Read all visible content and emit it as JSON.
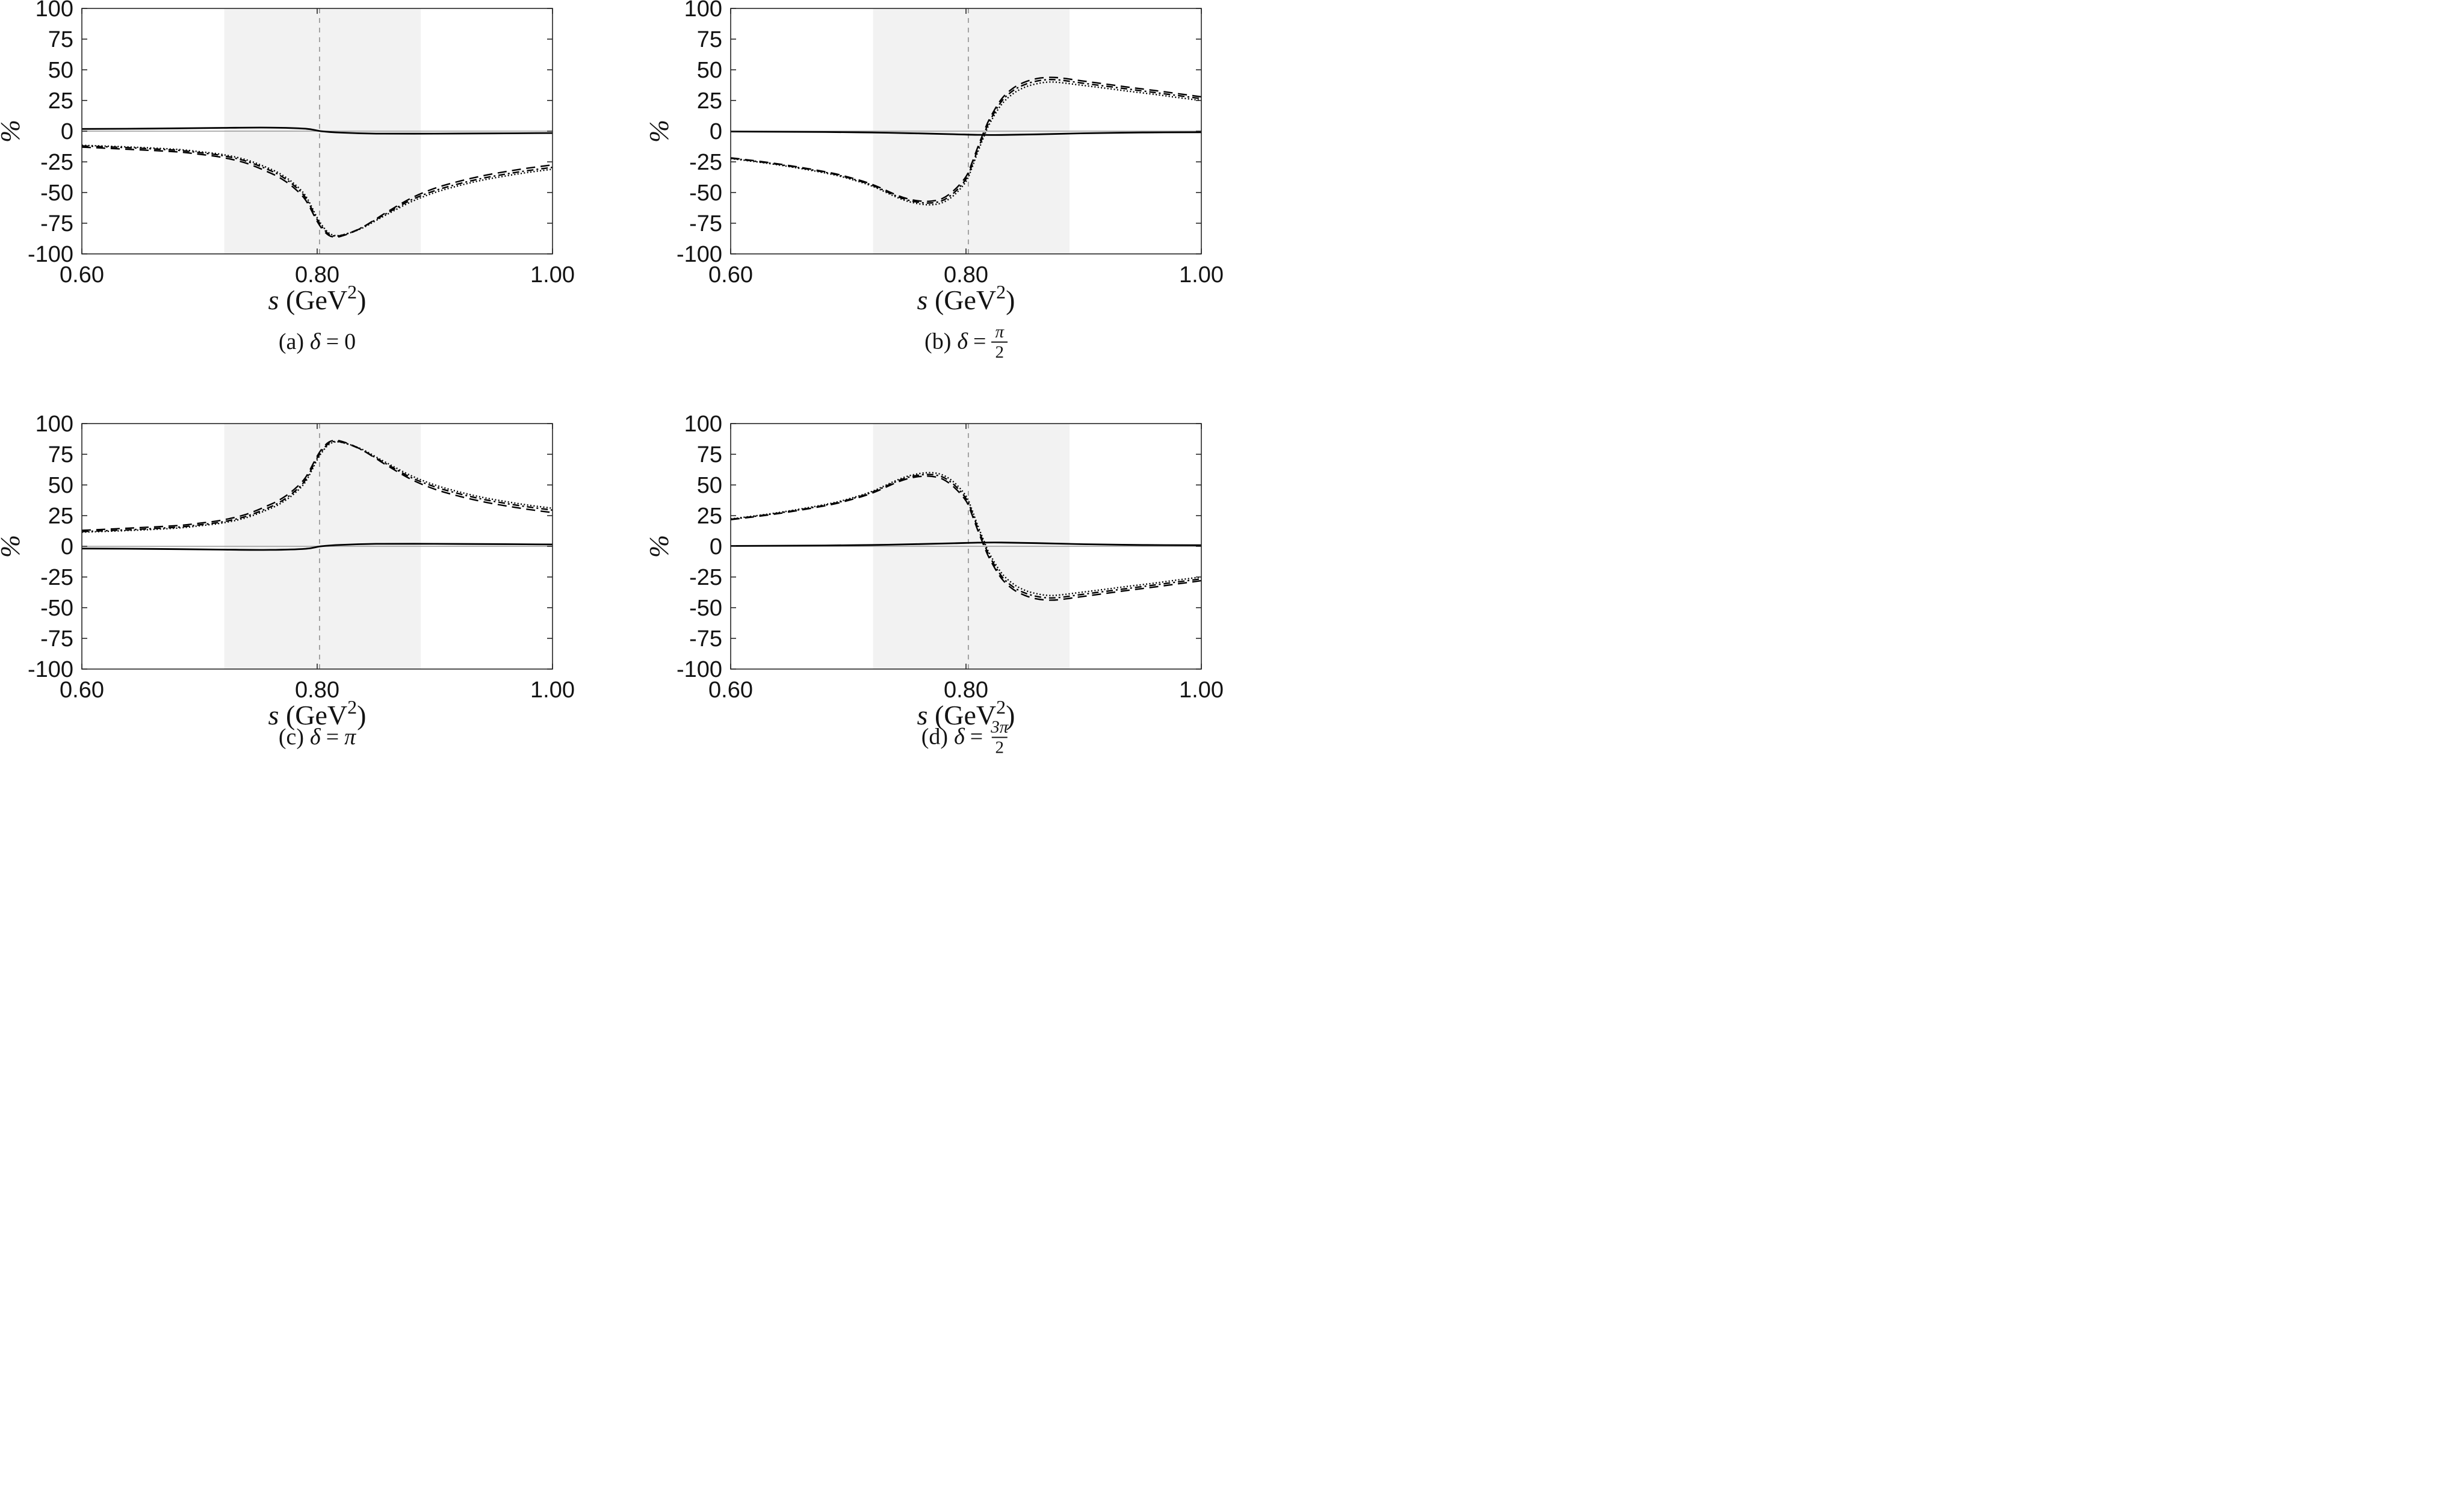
{
  "style": {
    "band_color": "#f2f2f2",
    "vline_color": "#8a8a8a",
    "zero_line_color": "#9a9a9a",
    "axis_color": "#262626",
    "curve_color": "#000000",
    "text_color": "#131313"
  },
  "figure": {
    "ylabel": "%",
    "xlabel": {
      "var": "s",
      "open": "(GeV",
      "exp": "2",
      "close": ")"
    }
  },
  "chart_data": [
    {
      "id": "a",
      "type": "line",
      "caption": {
        "prefix": "(a)",
        "symbol": "δ",
        "eq": "=",
        "value": "0",
        "value_italic": false
      },
      "xlim": [
        0.6,
        1.0
      ],
      "ylim": [
        -100,
        100
      ],
      "xticks": {
        "values": [
          0.6,
          0.8,
          1.0
        ],
        "labels": [
          "0.60",
          "0.80",
          "1.00"
        ]
      },
      "yticks": {
        "values": [
          100,
          75,
          50,
          25,
          0,
          -25,
          -50,
          -75,
          -100
        ],
        "labels": [
          "100",
          "75",
          "50",
          "25",
          "0",
          "-25",
          "-50",
          "-75",
          "-100"
        ]
      },
      "band": [
        0.721,
        0.888
      ],
      "vline": 0.802,
      "x": [
        0.6,
        0.64,
        0.68,
        0.7,
        0.72,
        0.74,
        0.76,
        0.77,
        0.78,
        0.79,
        0.8,
        0.805,
        0.81,
        0.815,
        0.82,
        0.83,
        0.84,
        0.85,
        0.86,
        0.88,
        0.9,
        0.92,
        0.94,
        0.96,
        0.98,
        1.0
      ],
      "series": [
        {
          "name": "dashed",
          "style": "dashed",
          "y": [
            -13,
            -14.8,
            -16.8,
            -18.8,
            -21.5,
            -26.2,
            -34,
            -39,
            -46,
            -56,
            -73.5,
            -80.5,
            -85,
            -86.3,
            -85.7,
            -82.3,
            -77.5,
            -71.5,
            -65.5,
            -54.5,
            -46.5,
            -41,
            -36.5,
            -33,
            -30,
            -27.5
          ]
        },
        {
          "name": "dash-dot",
          "style": "dashdot",
          "y": [
            -12,
            -13.5,
            -15.5,
            -17.5,
            -20,
            -24.5,
            -32,
            -37,
            -44,
            -54,
            -72,
            -79,
            -84,
            -85.5,
            -85,
            -82,
            -77.5,
            -72,
            -66.5,
            -56,
            -48.5,
            -43,
            -38.5,
            -35,
            -32,
            -29.5
          ]
        },
        {
          "name": "dotted",
          "style": "dotted",
          "y": [
            -11.5,
            -12.9,
            -14.8,
            -16.7,
            -19.1,
            -23.4,
            -30.7,
            -35.6,
            -42.5,
            -52.5,
            -70.5,
            -77.8,
            -83,
            -85,
            -84.8,
            -82.2,
            -78.2,
            -72.8,
            -67.5,
            -57.5,
            -50,
            -44.5,
            -40,
            -36.5,
            -33.5,
            -31
          ]
        }
      ],
      "solid": {
        "x": [
          0.6,
          0.66,
          0.72,
          0.76,
          0.79,
          0.803,
          0.82,
          0.85,
          0.9,
          0.95,
          1.0
        ],
        "y": [
          1.8,
          2.1,
          2.7,
          2.9,
          2.0,
          0,
          -1.2,
          -2.0,
          -2.0,
          -1.8,
          -1.5
        ]
      }
    },
    {
      "id": "b",
      "type": "line",
      "caption": {
        "prefix": "(b)",
        "symbol": "δ",
        "eq": "=",
        "frac": {
          "num": "π",
          "den": "2"
        }
      },
      "xlim": [
        0.6,
        1.0
      ],
      "ylim": [
        -100,
        100
      ],
      "xticks": {
        "values": [
          0.6,
          0.8,
          1.0
        ],
        "labels": [
          "0.60",
          "0.80",
          "1.00"
        ]
      },
      "yticks": {
        "values": [
          100,
          75,
          50,
          25,
          0,
          -25,
          -50,
          -75,
          -100
        ],
        "labels": [
          "100",
          "75",
          "50",
          "25",
          "0",
          "-25",
          "-50",
          "-75",
          "-100"
        ]
      },
      "band": [
        0.721,
        0.888
      ],
      "vline": 0.802,
      "x": [
        0.6,
        0.64,
        0.68,
        0.7,
        0.72,
        0.74,
        0.75,
        0.76,
        0.77,
        0.78,
        0.79,
        0.8,
        0.805,
        0.81,
        0.815,
        0.82,
        0.83,
        0.84,
        0.85,
        0.86,
        0.87,
        0.88,
        0.9,
        0.92,
        0.94,
        0.96,
        0.98,
        1.0
      ],
      "series": [
        {
          "name": "dashed",
          "style": "dashed",
          "y": [
            -21.7,
            -26.6,
            -33,
            -37.4,
            -43.3,
            -51.6,
            -55,
            -56.8,
            -57,
            -54.8,
            -48,
            -37,
            -26,
            -13,
            -1,
            10,
            26,
            35,
            40,
            42.8,
            43.8,
            43.4,
            40.8,
            38.2,
            35.6,
            33.2,
            30.6,
            28
          ]
        },
        {
          "name": "dash-dot",
          "style": "dashdot",
          "y": [
            -22,
            -27,
            -33.5,
            -38,
            -44,
            -52.5,
            -56,
            -58,
            -58.5,
            -56.5,
            -50,
            -39,
            -28,
            -15,
            -3,
            8,
            24,
            33,
            38,
            40.8,
            42,
            41.6,
            39,
            36.5,
            34,
            31.5,
            29,
            26.5
          ]
        },
        {
          "name": "dotted",
          "style": "dotted",
          "y": [
            -22.3,
            -27.4,
            -34,
            -38.6,
            -44.7,
            -53.4,
            -57,
            -59.2,
            -60,
            -58.2,
            -52,
            -41,
            -30,
            -17,
            -5,
            6,
            21.5,
            30.5,
            35.8,
            38.6,
            40,
            39.6,
            37.2,
            34.8,
            32.3,
            30,
            27.4,
            25
          ]
        }
      ],
      "solid": {
        "x": [
          0.6,
          0.68,
          0.72,
          0.76,
          0.79,
          0.81,
          0.83,
          0.86,
          0.9,
          0.95,
          1.0
        ],
        "y": [
          -0.3,
          -0.7,
          -1.1,
          -1.8,
          -2.5,
          -3.0,
          -3.1,
          -2.6,
          -1.7,
          -1.1,
          -0.9
        ]
      }
    },
    {
      "id": "c",
      "type": "line",
      "caption": {
        "prefix": "(c)",
        "symbol": "δ",
        "eq": "=",
        "value": "π",
        "value_italic": true
      },
      "xlim": [
        0.6,
        1.0
      ],
      "ylim": [
        -100,
        100
      ],
      "xticks": {
        "values": [
          0.6,
          0.8,
          1.0
        ],
        "labels": [
          "0.60",
          "0.80",
          "1.00"
        ]
      },
      "yticks": {
        "values": [
          100,
          75,
          50,
          25,
          0,
          -25,
          -50,
          -75,
          -100
        ],
        "labels": [
          "100",
          "75",
          "50",
          "25",
          "0",
          "-25",
          "-50",
          "-75",
          "-100"
        ]
      },
      "band": [
        0.721,
        0.888
      ],
      "vline": 0.802,
      "x": [
        0.6,
        0.64,
        0.68,
        0.7,
        0.72,
        0.74,
        0.76,
        0.77,
        0.78,
        0.79,
        0.8,
        0.805,
        0.81,
        0.815,
        0.82,
        0.83,
        0.84,
        0.85,
        0.86,
        0.88,
        0.9,
        0.92,
        0.94,
        0.96,
        0.98,
        1.0
      ],
      "series": [
        {
          "name": "dashed",
          "style": "dashed",
          "y": [
            13,
            14.8,
            16.8,
            18.8,
            21.5,
            26.2,
            34,
            39,
            46,
            56,
            73.5,
            80.5,
            85,
            86.3,
            85.7,
            82.3,
            77.5,
            71.5,
            65.5,
            54.5,
            46.5,
            41,
            36.5,
            33,
            30,
            27.5
          ]
        },
        {
          "name": "dash-dot",
          "style": "dashdot",
          "y": [
            12,
            13.5,
            15.5,
            17.5,
            20,
            24.5,
            32,
            37,
            44,
            54,
            72,
            79,
            84,
            85.5,
            85,
            82,
            77.5,
            72,
            66.5,
            56,
            48.5,
            43,
            38.5,
            35,
            32,
            29.5
          ]
        },
        {
          "name": "dotted",
          "style": "dotted",
          "y": [
            11.5,
            12.9,
            14.8,
            16.7,
            19.1,
            23.4,
            30.7,
            35.6,
            42.5,
            52.5,
            70.5,
            77.8,
            83,
            85,
            84.8,
            82.2,
            78.2,
            72.8,
            67.5,
            57.5,
            50,
            44.5,
            40,
            36.5,
            33.5,
            31
          ]
        }
      ],
      "solid": {
        "x": [
          0.6,
          0.66,
          0.72,
          0.76,
          0.79,
          0.803,
          0.82,
          0.85,
          0.9,
          0.95,
          1.0
        ],
        "y": [
          -1.8,
          -2.1,
          -2.7,
          -2.9,
          -2.0,
          0,
          1.2,
          2.0,
          2.0,
          1.8,
          1.5
        ]
      }
    },
    {
      "id": "d",
      "type": "line",
      "caption": {
        "prefix": "(d)",
        "symbol": "δ",
        "eq": "=",
        "frac": {
          "num": "3π",
          "den": "2"
        }
      },
      "xlim": [
        0.6,
        1.0
      ],
      "ylim": [
        -100,
        100
      ],
      "xticks": {
        "values": [
          0.6,
          0.8,
          1.0
        ],
        "labels": [
          "0.60",
          "0.80",
          "1.00"
        ]
      },
      "yticks": {
        "values": [
          100,
          75,
          50,
          25,
          0,
          -25,
          -50,
          -75,
          -100
        ],
        "labels": [
          "100",
          "75",
          "50",
          "25",
          "0",
          "-25",
          "-50",
          "-75",
          "-100"
        ]
      },
      "band": [
        0.721,
        0.888
      ],
      "vline": 0.802,
      "x": [
        0.6,
        0.64,
        0.68,
        0.7,
        0.72,
        0.74,
        0.75,
        0.76,
        0.77,
        0.78,
        0.79,
        0.8,
        0.805,
        0.81,
        0.815,
        0.82,
        0.83,
        0.84,
        0.85,
        0.86,
        0.87,
        0.88,
        0.9,
        0.92,
        0.94,
        0.96,
        0.98,
        1.0
      ],
      "series": [
        {
          "name": "dashed",
          "style": "dashed",
          "y": [
            21.7,
            26.6,
            33,
            37.4,
            43.3,
            51.6,
            55,
            56.8,
            57,
            54.8,
            48,
            37,
            26,
            13,
            1,
            -10,
            -26,
            -35,
            -40,
            -42.8,
            -43.8,
            -43.4,
            -40.8,
            -38.2,
            -35.6,
            -33.2,
            -30.6,
            -28
          ]
        },
        {
          "name": "dash-dot",
          "style": "dashdot",
          "y": [
            22,
            27,
            33.5,
            38,
            44,
            52.5,
            56,
            58,
            58.5,
            56.5,
            50,
            39,
            28,
            15,
            3,
            -8,
            -24,
            -33,
            -38,
            -40.8,
            -42,
            -41.6,
            -39,
            -36.5,
            -34,
            -31.5,
            -29,
            -26.5
          ]
        },
        {
          "name": "dotted",
          "style": "dotted",
          "y": [
            22.3,
            27.4,
            34,
            38.6,
            44.7,
            53.4,
            57,
            59.2,
            60,
            58.2,
            52,
            41,
            30,
            17,
            5,
            -6,
            -21.5,
            -30.5,
            -35.8,
            -38.6,
            -40,
            -39.6,
            -37.2,
            -34.8,
            -32.3,
            -30,
            -27.4,
            -25
          ]
        }
      ],
      "solid": {
        "x": [
          0.6,
          0.68,
          0.72,
          0.76,
          0.79,
          0.81,
          0.83,
          0.86,
          0.9,
          0.95,
          1.0
        ],
        "y": [
          0.3,
          0.7,
          1.1,
          1.8,
          2.5,
          3.0,
          3.1,
          2.6,
          1.7,
          1.1,
          0.9
        ]
      }
    }
  ]
}
